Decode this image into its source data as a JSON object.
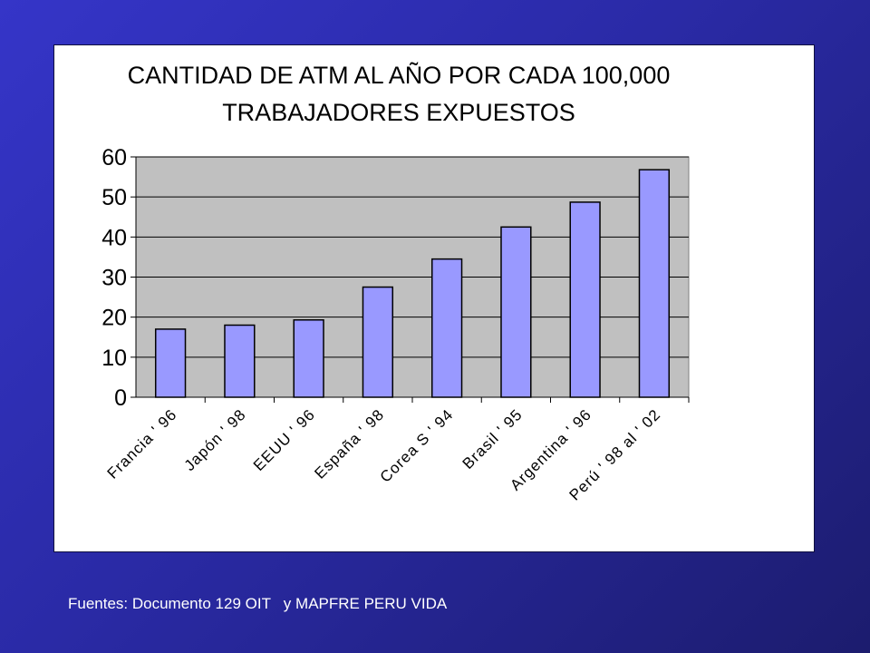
{
  "chart_data": {
    "type": "bar",
    "title": [
      "CANTIDAD DE ATM AL AÑO POR CADA 100,000",
      "TRABAJADORES EXPUESTOS"
    ],
    "xlabel": "",
    "ylabel": "",
    "categories": [
      "Francia ' 96",
      "Japón ' 98",
      "EEUU ' 96",
      "España ' 98",
      "Corea S ' 94",
      "Brasil ' 95",
      "Argentina ' 96",
      "Perú ' 98 al ' 02"
    ],
    "values": [
      17,
      18,
      19.3,
      27.5,
      34.5,
      42.5,
      48.7,
      56.8
    ],
    "ylim": [
      0,
      60
    ],
    "yticks": [
      "0",
      "10",
      "20",
      "30",
      "40",
      "50",
      "60"
    ],
    "grid": true,
    "legend": "none",
    "colors": {
      "bar_fill": "#9999ff",
      "plot_background": "#c0c0c0",
      "gridline": "#000000"
    }
  },
  "footer": {
    "source": "Fuentes: Documento 129 OIT   y MAPFRE PERU VIDA"
  }
}
